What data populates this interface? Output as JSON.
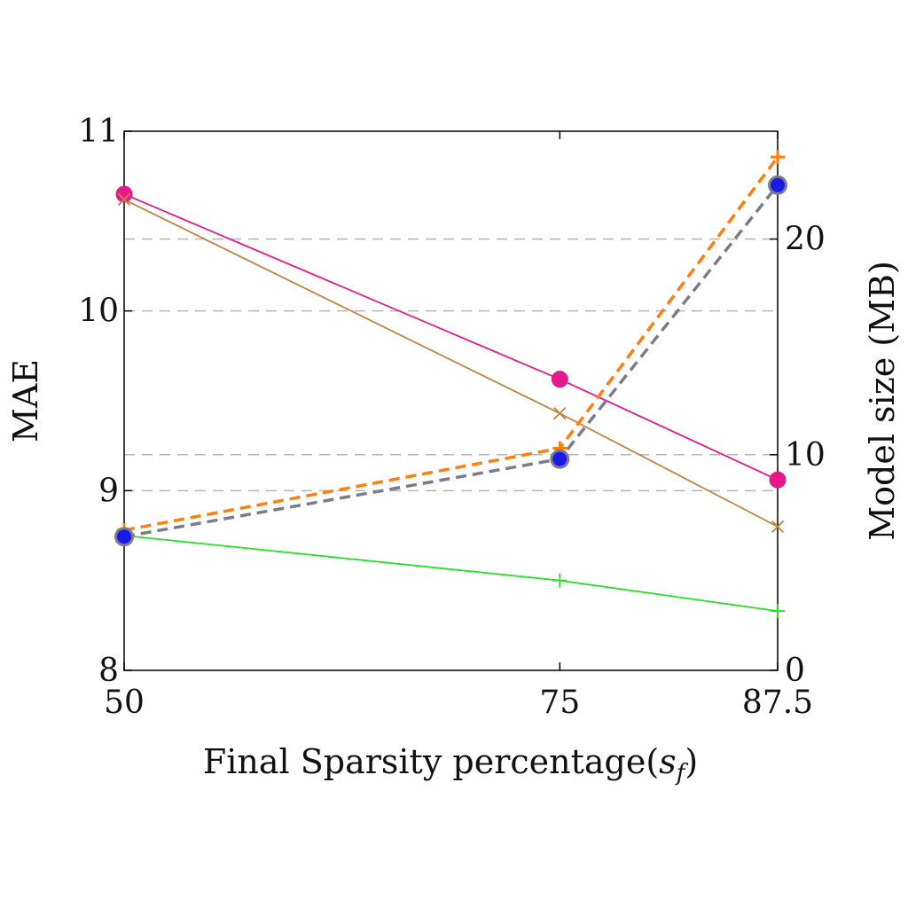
{
  "chart_data": {
    "type": "line",
    "title": "",
    "xlabel": "Final Sparsity percentage(",
    "xlabel_math": "s",
    "xlabel_sub": "f",
    "xlabel_close": ")",
    "ylabel_left": "MAE",
    "ylabel_right": "Model size (MB)",
    "x": [
      50,
      75,
      87.5
    ],
    "x_tick_labels": [
      "50",
      "75",
      "87.5"
    ],
    "xlim": [
      50,
      87.5
    ],
    "ylim_left": [
      8,
      11
    ],
    "ylim_right": [
      0,
      25
    ],
    "y_ticks_left": [
      8,
      9,
      10,
      11
    ],
    "y_ticks_right": [
      0,
      10,
      20
    ],
    "grid": "horizontal dashed",
    "series": [
      {
        "axis": "left",
        "marker": "circle",
        "line": "solid",
        "color": "#e6198c",
        "values": [
          10.65,
          9.62,
          9.06
        ]
      },
      {
        "axis": "left",
        "marker": "x",
        "line": "solid",
        "color": "#c0843f",
        "values": [
          10.62,
          9.43,
          8.8
        ]
      },
      {
        "axis": "left",
        "marker": "plus",
        "line": "solid",
        "color": "#22e022",
        "values": [
          8.75,
          8.5,
          8.33
        ]
      },
      {
        "axis": "right",
        "marker": "plus",
        "line": "dashed",
        "color": "#ff7f0e",
        "values": [
          6.5,
          10.3,
          23.8
        ]
      },
      {
        "axis": "right",
        "marker": "circle",
        "line": "dashed",
        "color": "#7b7b8f",
        "marker_color": "#1a1ae6",
        "values": [
          6.2,
          9.8,
          22.5
        ]
      }
    ]
  }
}
